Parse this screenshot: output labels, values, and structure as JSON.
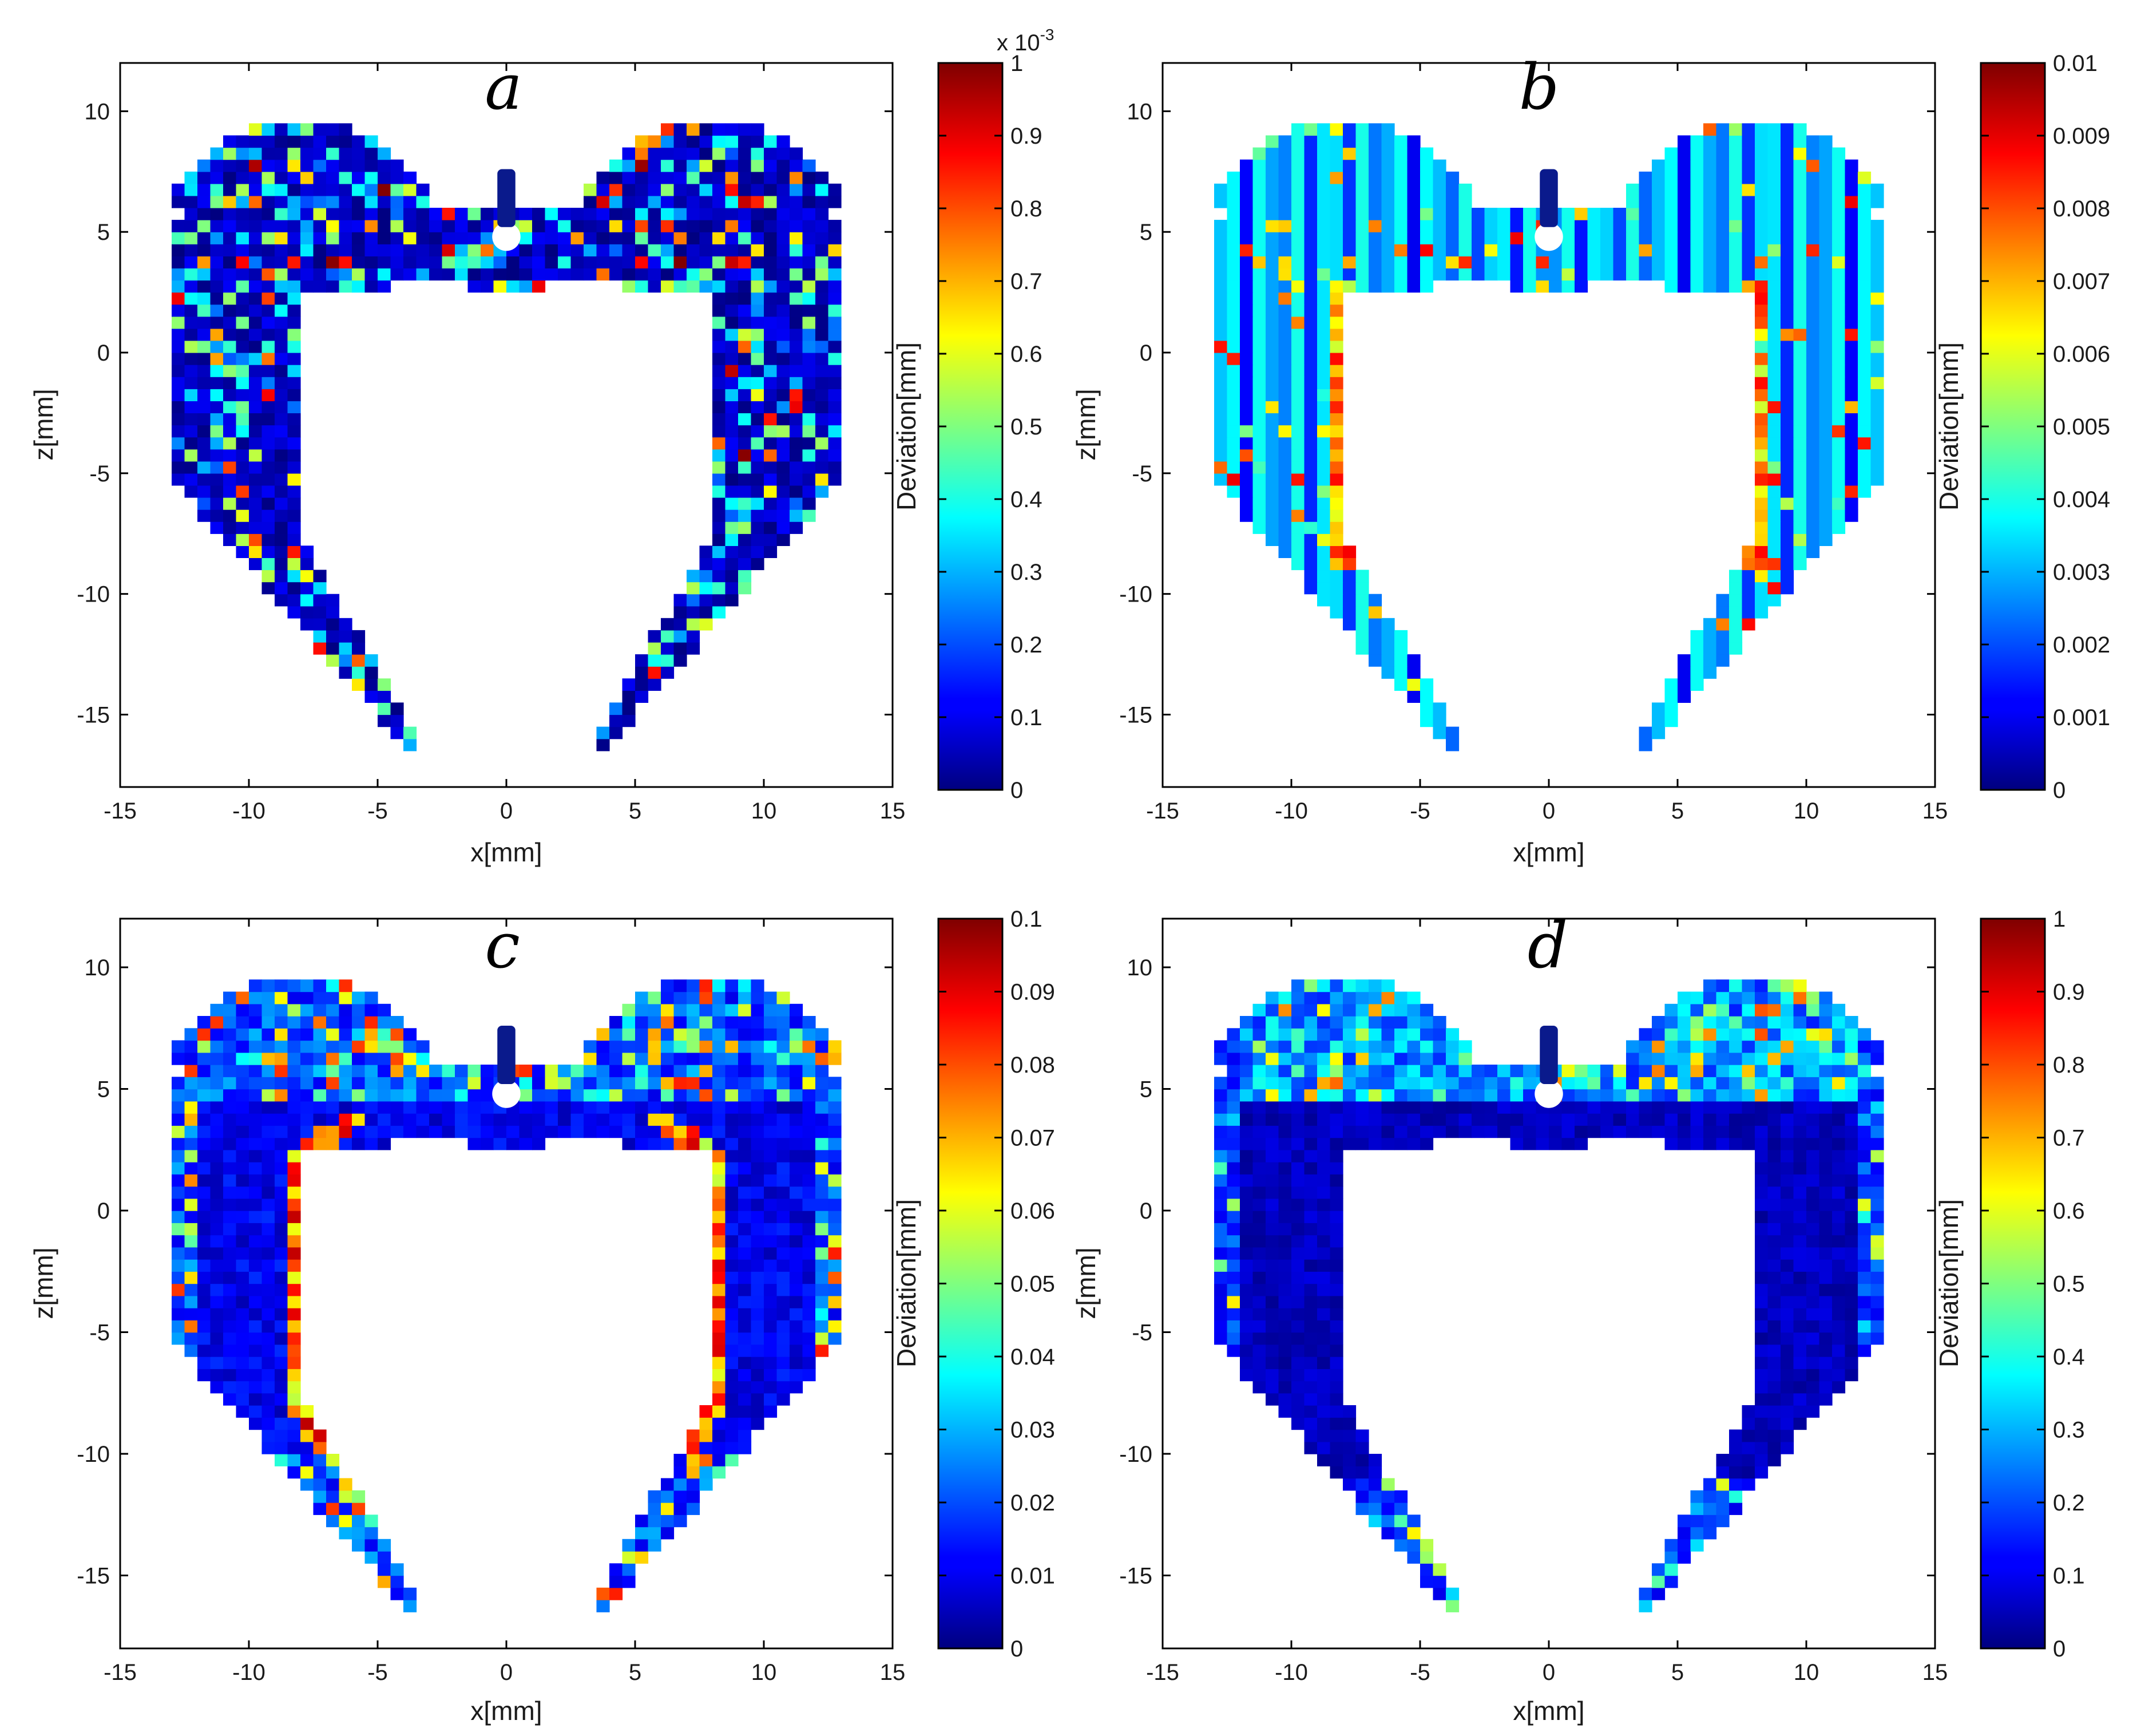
{
  "chart_data": [
    {
      "type": "heatmap",
      "panel_label": "a",
      "xlabel": "x[mm]",
      "ylabel": "z[mm]",
      "xlim": [
        -15,
        15
      ],
      "ylim": [
        -18,
        12
      ],
      "xticks": [
        "-15",
        "-10",
        "-5",
        "0",
        "5",
        "10",
        "15"
      ],
      "yticks": [
        "10",
        "5",
        "0",
        "-5",
        "-10",
        "-15"
      ],
      "colorbar": {
        "label": "Deviation[mm]",
        "range": [
          0,
          1
        ],
        "ticks": [
          "1",
          "0.9",
          "0.8",
          "0.7",
          "0.6",
          "0.5",
          "0.4",
          "0.3",
          "0.2",
          "0.1",
          "0"
        ],
        "multiplier_text": "x 10",
        "multiplier_exp": "-3",
        "colormap": "jet"
      },
      "pattern": "speckled",
      "seed": 11
    },
    {
      "type": "heatmap",
      "panel_label": "b",
      "xlabel": "x[mm]",
      "ylabel": "z[mm]",
      "xlim": [
        -15,
        15
      ],
      "ylim": [
        -18,
        12
      ],
      "xticks": [
        "-15",
        "-10",
        "-5",
        "0",
        "5",
        "10",
        "15"
      ],
      "yticks": [
        "10",
        "5",
        "0",
        "-5",
        "-10",
        "-15"
      ],
      "colorbar": {
        "label": "Deviation[mm]",
        "range": [
          0,
          0.01
        ],
        "ticks": [
          "0.01",
          "0.009",
          "0.008",
          "0.007",
          "0.006",
          "0.005",
          "0.004",
          "0.003",
          "0.002",
          "0.001",
          "0"
        ],
        "colormap": "jet"
      },
      "pattern": "banded",
      "seed": 23
    },
    {
      "type": "heatmap",
      "panel_label": "c",
      "xlabel": "x[mm]",
      "ylabel": "z[mm]",
      "xlim": [
        -15,
        15
      ],
      "ylim": [
        -18,
        12
      ],
      "xticks": [
        "-15",
        "-10",
        "-5",
        "0",
        "5",
        "10",
        "15"
      ],
      "yticks": [
        "10",
        "5",
        "0",
        "-5",
        "-10",
        "-15"
      ],
      "colorbar": {
        "label": "Deviation[mm]",
        "range": [
          0,
          0.1
        ],
        "ticks": [
          "0.1",
          "0.09",
          "0.08",
          "0.07",
          "0.06",
          "0.05",
          "0.04",
          "0.03",
          "0.02",
          "0.01",
          "0"
        ],
        "colormap": "jet"
      },
      "pattern": "inner-edge",
      "seed": 37
    },
    {
      "type": "heatmap",
      "panel_label": "d",
      "xlabel": "x[mm]",
      "ylabel": "z[mm]",
      "xlim": [
        -15,
        15
      ],
      "ylim": [
        -18,
        12
      ],
      "xticks": [
        "-15",
        "-10",
        "-5",
        "0",
        "5",
        "10",
        "15"
      ],
      "yticks": [
        "10",
        "5",
        "0",
        "-5",
        "-10",
        "-15"
      ],
      "colorbar": {
        "label": "Deviation[mm]",
        "range": [
          0,
          1
        ],
        "ticks": [
          "1",
          "0.9",
          "0.8",
          "0.7",
          "0.6",
          "0.5",
          "0.4",
          "0.3",
          "0.2",
          "0.1",
          "0"
        ],
        "colormap": "jet"
      },
      "pattern": "top-band",
      "seed": 53
    }
  ]
}
